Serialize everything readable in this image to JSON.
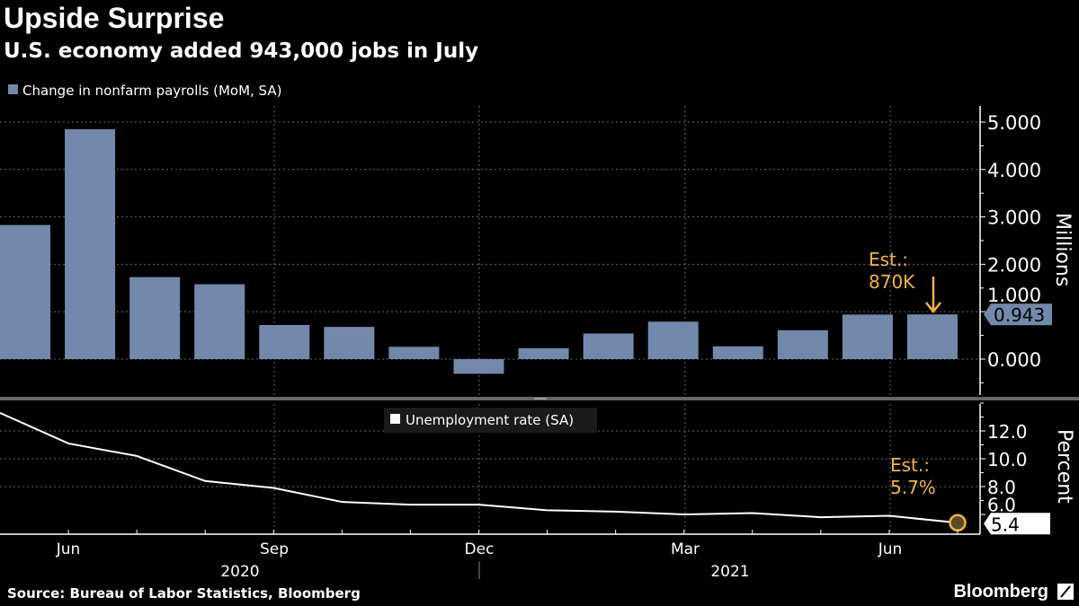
{
  "title": "Upside Surprise",
  "subtitle": "U.S. economy added 943,000 jobs in July",
  "source": "Source: Bureau of Labor Statistics, Bloomberg",
  "brand": "Bloomberg",
  "colors": {
    "bar": "#7289ab",
    "line": "#ffffff",
    "annotation": "#f5b342",
    "background": "#000000"
  },
  "chart_data": [
    {
      "type": "bar",
      "legend": "Change in nonfarm payrolls (MoM, SA)",
      "ylabel": "Millions",
      "ylim": [
        -0.8,
        5.3
      ],
      "yticks": [
        "0.000",
        "1.000",
        "2.000",
        "3.000",
        "4.000",
        "5.000"
      ],
      "categories": [
        "May 2020",
        "Jun 2020",
        "Jul 2020",
        "Aug 2020",
        "Sep 2020",
        "Oct 2020",
        "Nov 2020",
        "Dec 2020",
        "Jan 2021",
        "Feb 2021",
        "Mar 2021",
        "Apr 2021",
        "May 2021",
        "Jun 2021",
        "Jul 2021"
      ],
      "values": [
        2.83,
        4.85,
        1.73,
        1.58,
        0.72,
        0.68,
        0.26,
        -0.31,
        0.23,
        0.54,
        0.79,
        0.27,
        0.61,
        0.94,
        0.943
      ],
      "last_value_label": "0.943",
      "annotation": {
        "line1": "Est.:",
        "line2": "870K"
      },
      "grid": true
    },
    {
      "type": "line",
      "legend": "Unemployment rate (SA)",
      "ylabel": "Percent",
      "ylim": [
        4.3,
        14.5
      ],
      "yticks": [
        "6.0",
        "8.0",
        "10.0",
        "12.0"
      ],
      "categories": [
        "May 2020",
        "Jun 2020",
        "Jul 2020",
        "Aug 2020",
        "Sep 2020",
        "Oct 2020",
        "Nov 2020",
        "Dec 2020",
        "Jan 2021",
        "Feb 2021",
        "Mar 2021",
        "Apr 2021",
        "May 2021",
        "Jun 2021",
        "Jul 2021"
      ],
      "values": [
        13.3,
        11.1,
        10.2,
        8.4,
        7.9,
        6.9,
        6.7,
        6.7,
        6.3,
        6.2,
        6.0,
        6.1,
        5.8,
        5.9,
        5.4
      ],
      "last_value_label": "5.4",
      "annotation": {
        "line1": "Est.:",
        "line2": "5.7%"
      },
      "grid": true
    }
  ],
  "xaxis": {
    "month_labels": [
      "Jun",
      "Sep",
      "Dec",
      "Mar",
      "Jun"
    ],
    "year_labels": [
      "2020",
      "2021"
    ]
  }
}
